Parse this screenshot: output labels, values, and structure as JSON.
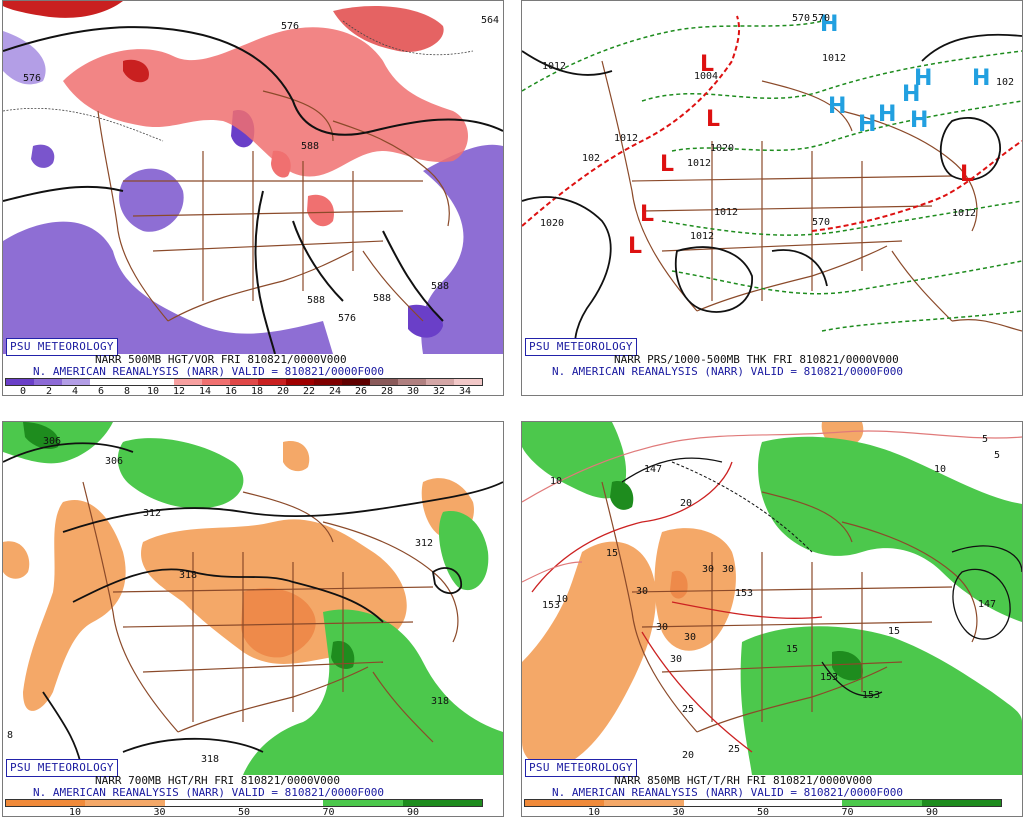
{
  "panels": [
    {
      "badge": "PSU METEOROLOGY",
      "caption_line1": "NARR 500MB HGT/VOR FRI 810821/0000V000",
      "caption_line2": "N. AMERICAN REANALYSIS (NARR) VALID = 810821/0000F000",
      "colorbar_ticks": [
        "0",
        "2",
        "4",
        "6",
        "8",
        "10",
        "12",
        "14",
        "16",
        "18",
        "20",
        "22",
        "24",
        "26",
        "28",
        "30",
        "32",
        "34"
      ],
      "colorbar_colors": [
        "#6a3fc8",
        "#8d6ad6",
        "#b39ee6",
        "#ffffff",
        "#ffffff",
        "#ffffff",
        "#f7a0a0",
        "#f07070",
        "#e04848",
        "#c92020",
        "#a00000",
        "#800000",
        "#600000",
        "#8a5a5a",
        "#b08080",
        "#d4a6a6",
        "#f2c8c8"
      ],
      "labels": [
        "576",
        "564",
        "576",
        "588",
        "576",
        "588",
        "588",
        "588"
      ]
    },
    {
      "badge": "PSU METEOROLOGY",
      "caption_line1": "NARR PRS/1000-500MB THK FRI 810821/0000V000",
      "caption_line2": "N. AMERICAN REANALYSIS (NARR) VALID = 810821/0000F000",
      "labels": [
        "1012",
        "1004",
        "1012",
        "1012",
        "1012",
        "1020",
        "1012",
        "1012",
        "1020",
        "1012",
        "102",
        "102",
        "570",
        "570",
        "570"
      ]
    },
    {
      "badge": "PSU METEOROLOGY",
      "caption_line1": "NARR 700MB HGT/RH FRI 810821/0000V000",
      "caption_line2": "N. AMERICAN REANALYSIS (NARR) VALID = 810821/0000F000",
      "colorbar_ticks": [
        "10",
        "30",
        "50",
        "70",
        "90"
      ],
      "colorbar_colors": [
        "#f08a3a",
        "#f4a868",
        "#ffffff",
        "#ffffff",
        "#4cc84c",
        "#1e8c1e"
      ],
      "labels": [
        "306",
        "306",
        "312",
        "318",
        "312",
        "318",
        "318",
        "8"
      ]
    },
    {
      "badge": "PSU METEOROLOGY",
      "caption_line1": "NARR 850MB HGT/T/RH FRI 810821/0000V000",
      "caption_line2": "N. AMERICAN REANALYSIS (NARR) VALID = 810821/0000F000",
      "colorbar_ticks": [
        "10",
        "30",
        "50",
        "70",
        "90"
      ],
      "colorbar_colors": [
        "#f08a3a",
        "#f4a868",
        "#ffffff",
        "#ffffff",
        "#4cc84c",
        "#1e8c1e"
      ],
      "labels": [
        "147",
        "153",
        "153",
        "153",
        "153",
        "147",
        "5",
        "5",
        "10",
        "10",
        "10",
        "15",
        "15",
        "15",
        "20",
        "20",
        "25",
        "25",
        "30",
        "30",
        "30",
        "30",
        "30",
        "30"
      ]
    }
  ]
}
